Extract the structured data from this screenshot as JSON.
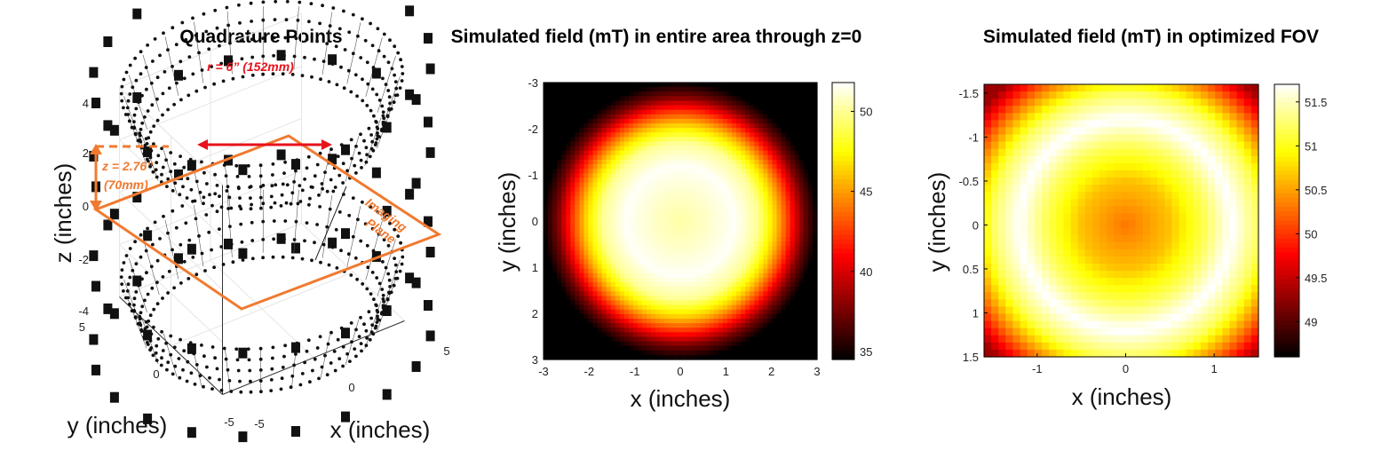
{
  "chart_data": [
    {
      "type": "scatter3d",
      "title": "Quadrature Points",
      "xlabel": "x (inches)",
      "ylabel": "y (inches)",
      "zlabel": "z (inches)",
      "xlim": [
        -5,
        5
      ],
      "ylim": [
        -5,
        5
      ],
      "zlim": [
        -4,
        4
      ],
      "x_ticks": [
        "-5",
        "0",
        "5"
      ],
      "y_ticks": [
        "-5",
        "0",
        "5"
      ],
      "z_ticks": [
        "-4",
        "-2",
        "0",
        "2",
        "4"
      ],
      "coil_radius_in": 6,
      "coil_center_z_in": [
        3.5,
        -3.5
      ],
      "imaging_plane_z": 0,
      "annotations": {
        "radius": "r = 6” (152mm)",
        "z_line1": "z = 2.76”",
        "z_line2": "(70mm)",
        "plane_line1": "Imaging",
        "plane_line2": "Plane"
      },
      "colors": {
        "points": "#000000",
        "radius_arrow": "#e8121c",
        "annotation": "#f07a30"
      }
    },
    {
      "type": "heatmap",
      "title": "Simulated field (mT) in entire area through z=0",
      "xlabel": "x (inches)",
      "ylabel": "y (inches)",
      "xlim": [
        -3,
        3
      ],
      "ylim": [
        -3,
        3
      ],
      "x_ticks": [
        "-3",
        "-2",
        "-1",
        "0",
        "1",
        "2",
        "3"
      ],
      "y_ticks": [
        "-3",
        "-2",
        "-1",
        "0",
        "1",
        "2",
        "3"
      ],
      "colorbar_ticks": [
        "35",
        "40",
        "45",
        "50"
      ],
      "clim": [
        34.5,
        51.8
      ],
      "colormap": "hot",
      "grid_n": 61,
      "profile": {
        "r": [
          0,
          0.6,
          1.2,
          1.7,
          2.1,
          2.4,
          2.7,
          3.0
        ],
        "v": [
          50.3,
          50.9,
          51.7,
          50.0,
          46.0,
          42.0,
          37.5,
          34.5
        ]
      }
    },
    {
      "type": "heatmap",
      "title": "Simulated field (mT) in optimized FOV",
      "xlabel": "x (inches)",
      "ylabel": "y (inches)",
      "xlim": [
        -1.6,
        1.5
      ],
      "ylim": [
        -1.6,
        1.5
      ],
      "x_ticks": [
        "-1",
        "0",
        "1"
      ],
      "y_ticks": [
        "-1.5",
        "-1",
        "-0.5",
        "0",
        "0.5",
        "1",
        "1.5"
      ],
      "colorbar_ticks": [
        "49",
        "49.5",
        "50",
        "50.5",
        "51",
        "51.5"
      ],
      "clim": [
        48.6,
        51.7
      ],
      "colormap": "hot",
      "grid_n": 38,
      "profile": {
        "r": [
          0,
          0.5,
          0.9,
          1.2,
          1.5,
          1.8,
          2.1
        ],
        "v": [
          50.3,
          50.65,
          51.2,
          51.72,
          51.2,
          50.3,
          49.3
        ]
      }
    }
  ]
}
